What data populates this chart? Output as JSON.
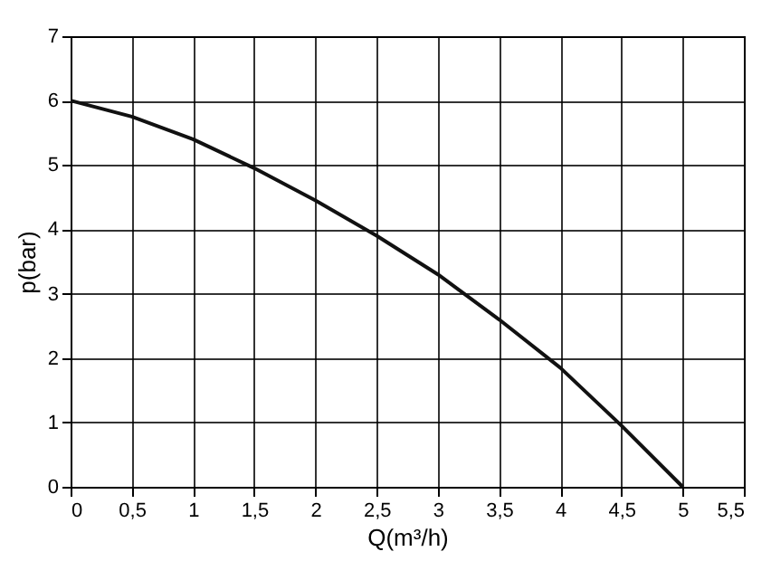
{
  "chart_data": {
    "type": "line",
    "xlabel": "Q(m³/h)",
    "ylabel": "p(bar)",
    "x": [
      0,
      0.5,
      1,
      1.5,
      2,
      2.5,
      3,
      3.5,
      4,
      4.5,
      5
    ],
    "series": [
      {
        "color": "#111111",
        "values": [
          6,
          5.75,
          5.4,
          4.95,
          4.45,
          3.9,
          3.3,
          2.6,
          1.85,
          0.95,
          0
        ]
      }
    ],
    "xlim": [
      0,
      5.5
    ],
    "xticks": [
      0,
      {
        "value": 0.5,
        "label": "0,5"
      },
      1,
      {
        "value": 1.5,
        "label": "1,5"
      },
      2,
      {
        "value": 2.5,
        "label": "2,5"
      },
      3,
      {
        "value": 3.5,
        "label": "3,5"
      },
      4,
      {
        "value": 4.5,
        "label": "4,5"
      },
      5,
      {
        "value": 5.5,
        "label": "5,5"
      }
    ],
    "ylim": [
      0,
      7
    ],
    "yticks": [
      0,
      1,
      2,
      3,
      4,
      5,
      6,
      7
    ],
    "grid": true,
    "marker": "none",
    "line_style": "solid"
  }
}
